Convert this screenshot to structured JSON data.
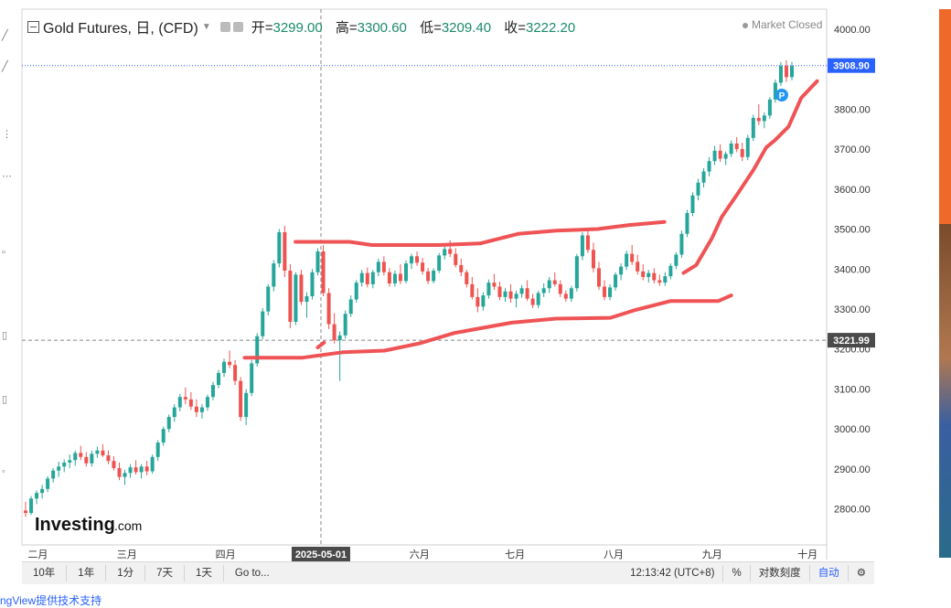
{
  "header": {
    "title": "Gold Futures, 日, (CFD)",
    "ohlc": [
      {
        "label": "开=",
        "value": "3299.00"
      },
      {
        "label": "高=",
        "value": "3300.60"
      },
      {
        "label": "低=",
        "value": "3209.40"
      },
      {
        "label": "收=",
        "value": "3222.20"
      }
    ],
    "status": "Market Closed"
  },
  "watermark": {
    "brand": "Investing",
    "suffix": ".com"
  },
  "price_marker_last": "3908.90",
  "price_marker_cursor": "3221.99",
  "cursor_date_label": "2025-05-01",
  "pin_label": "P",
  "chart_data": {
    "type": "candlestick",
    "y_range": [
      2710,
      4050
    ],
    "y_ticks": [
      "4000.00",
      "3900.00",
      "3800.00",
      "3700.00",
      "3600.00",
      "3500.00",
      "3400.00",
      "3300.00",
      "3200.00",
      "3100.00",
      "3000.00",
      "2900.00",
      "2800.00"
    ],
    "x_labels": [
      "二月",
      "三月",
      "四月",
      "2025-05-01",
      "六月",
      "七月",
      "八月",
      "九月",
      "十月"
    ],
    "candles": [
      [
        2796,
        2818,
        2780,
        2790
      ],
      [
        2790,
        2832,
        2785,
        2826
      ],
      [
        2826,
        2846,
        2812,
        2840
      ],
      [
        2840,
        2860,
        2826,
        2850
      ],
      [
        2850,
        2882,
        2842,
        2876
      ],
      [
        2876,
        2902,
        2866,
        2896
      ],
      [
        2896,
        2918,
        2880,
        2906
      ],
      [
        2906,
        2924,
        2892,
        2916
      ],
      [
        2916,
        2936,
        2902,
        2922
      ],
      [
        2922,
        2946,
        2908,
        2940
      ],
      [
        2940,
        2958,
        2922,
        2930
      ],
      [
        2930,
        2942,
        2906,
        2914
      ],
      [
        2914,
        2946,
        2906,
        2938
      ],
      [
        2938,
        2956,
        2928,
        2946
      ],
      [
        2946,
        2962,
        2930,
        2934
      ],
      [
        2934,
        2946,
        2912,
        2920
      ],
      [
        2920,
        2932,
        2896,
        2902
      ],
      [
        2902,
        2916,
        2872,
        2880
      ],
      [
        2880,
        2898,
        2860,
        2890
      ],
      [
        2890,
        2912,
        2878,
        2904
      ],
      [
        2904,
        2922,
        2886,
        2892
      ],
      [
        2892,
        2912,
        2876,
        2906
      ],
      [
        2906,
        2920,
        2884,
        2894
      ],
      [
        2894,
        2936,
        2888,
        2930
      ],
      [
        2930,
        2972,
        2920,
        2966
      ],
      [
        2966,
        3006,
        2958,
        3000
      ],
      [
        3000,
        3036,
        2992,
        3030
      ],
      [
        3030,
        3062,
        3018,
        3054
      ],
      [
        3054,
        3088,
        3044,
        3080
      ],
      [
        3080,
        3104,
        3062,
        3074
      ],
      [
        3074,
        3092,
        3048,
        3056
      ],
      [
        3056,
        3074,
        3030,
        3042
      ],
      [
        3042,
        3062,
        3026,
        3054
      ],
      [
        3054,
        3086,
        3046,
        3080
      ],
      [
        3080,
        3118,
        3072,
        3110
      ],
      [
        3110,
        3148,
        3102,
        3140
      ],
      [
        3140,
        3176,
        3130,
        3168
      ],
      [
        3168,
        3196,
        3152,
        3160
      ],
      [
        3160,
        3172,
        3110,
        3120
      ],
      [
        3120,
        3130,
        3020,
        3030
      ],
      [
        3030,
        3100,
        3010,
        3090
      ],
      [
        3090,
        3172,
        3082,
        3164
      ],
      [
        3164,
        3240,
        3156,
        3232
      ],
      [
        3232,
        3302,
        3224,
        3294
      ],
      [
        3294,
        3362,
        3284,
        3356
      ],
      [
        3356,
        3422,
        3344,
        3414
      ],
      [
        3414,
        3500,
        3404,
        3492
      ],
      [
        3492,
        3508,
        3380,
        3396
      ],
      [
        3396,
        3412,
        3252,
        3268
      ],
      [
        3268,
        3392,
        3260,
        3386
      ],
      [
        3386,
        3398,
        3310,
        3318
      ],
      [
        3318,
        3342,
        3278,
        3332
      ],
      [
        3332,
        3400,
        3324,
        3392
      ],
      [
        3392,
        3452,
        3384,
        3444
      ],
      [
        3444,
        3460,
        3332,
        3340
      ],
      [
        3340,
        3352,
        3250,
        3262
      ],
      [
        3262,
        3290,
        3214,
        3222
      ],
      [
        3222,
        3244,
        3120,
        3234
      ],
      [
        3234,
        3296,
        3226,
        3288
      ],
      [
        3288,
        3334,
        3280,
        3324
      ],
      [
        3324,
        3372,
        3316,
        3366
      ],
      [
        3366,
        3398,
        3356,
        3390
      ],
      [
        3390,
        3404,
        3354,
        3362
      ],
      [
        3362,
        3398,
        3352,
        3392
      ],
      [
        3392,
        3426,
        3382,
        3418
      ],
      [
        3418,
        3432,
        3384,
        3392
      ],
      [
        3392,
        3402,
        3356,
        3364
      ],
      [
        3364,
        3396,
        3356,
        3388
      ],
      [
        3388,
        3412,
        3362,
        3370
      ],
      [
        3370,
        3422,
        3364,
        3414
      ],
      [
        3414,
        3438,
        3400,
        3432
      ],
      [
        3432,
        3444,
        3408,
        3416
      ],
      [
        3416,
        3428,
        3386,
        3394
      ],
      [
        3394,
        3402,
        3362,
        3370
      ],
      [
        3370,
        3402,
        3364,
        3396
      ],
      [
        3396,
        3440,
        3390,
        3434
      ],
      [
        3434,
        3458,
        3424,
        3450
      ],
      [
        3450,
        3472,
        3430,
        3438
      ],
      [
        3438,
        3452,
        3404,
        3410
      ],
      [
        3410,
        3426,
        3382,
        3392
      ],
      [
        3392,
        3398,
        3354,
        3362
      ],
      [
        3362,
        3380,
        3324,
        3330
      ],
      [
        3330,
        3352,
        3292,
        3306
      ],
      [
        3306,
        3342,
        3296,
        3334
      ],
      [
        3334,
        3374,
        3326,
        3366
      ],
      [
        3366,
        3388,
        3348,
        3356
      ],
      [
        3356,
        3368,
        3322,
        3330
      ],
      [
        3330,
        3352,
        3318,
        3344
      ],
      [
        3344,
        3362,
        3316,
        3326
      ],
      [
        3326,
        3346,
        3304,
        3338
      ],
      [
        3338,
        3360,
        3328,
        3352
      ],
      [
        3352,
        3372,
        3320,
        3326
      ],
      [
        3326,
        3338,
        3302,
        3310
      ],
      [
        3310,
        3346,
        3302,
        3340
      ],
      [
        3340,
        3364,
        3330,
        3352
      ],
      [
        3352,
        3380,
        3340,
        3372
      ],
      [
        3372,
        3392,
        3356,
        3362
      ],
      [
        3362,
        3372,
        3330,
        3338
      ],
      [
        3338,
        3346,
        3318,
        3326
      ],
      [
        3326,
        3358,
        3318,
        3352
      ],
      [
        3352,
        3438,
        3344,
        3432
      ],
      [
        3432,
        3492,
        3422,
        3484
      ],
      [
        3484,
        3502,
        3440,
        3448
      ],
      [
        3448,
        3466,
        3392,
        3402
      ],
      [
        3402,
        3418,
        3348,
        3356
      ],
      [
        3356,
        3372,
        3322,
        3330
      ],
      [
        3330,
        3362,
        3322,
        3354
      ],
      [
        3354,
        3392,
        3346,
        3386
      ],
      [
        3386,
        3414,
        3372,
        3406
      ],
      [
        3406,
        3446,
        3398,
        3438
      ],
      [
        3438,
        3460,
        3410,
        3418
      ],
      [
        3418,
        3436,
        3386,
        3394
      ],
      [
        3394,
        3412,
        3372,
        3380
      ],
      [
        3380,
        3398,
        3366,
        3390
      ],
      [
        3390,
        3402,
        3364,
        3372
      ],
      [
        3372,
        3386,
        3358,
        3366
      ],
      [
        3366,
        3392,
        3358,
        3382
      ],
      [
        3382,
        3414,
        3374,
        3408
      ],
      [
        3408,
        3442,
        3400,
        3436
      ],
      [
        3436,
        3496,
        3428,
        3488
      ],
      [
        3488,
        3548,
        3480,
        3540
      ],
      [
        3540,
        3592,
        3532,
        3584
      ],
      [
        3584,
        3626,
        3572,
        3616
      ],
      [
        3616,
        3652,
        3604,
        3644
      ],
      [
        3644,
        3680,
        3632,
        3670
      ],
      [
        3670,
        3708,
        3660,
        3696
      ],
      [
        3696,
        3712,
        3668,
        3676
      ],
      [
        3676,
        3694,
        3660,
        3688
      ],
      [
        3688,
        3722,
        3680,
        3714
      ],
      [
        3714,
        3730,
        3692,
        3700
      ],
      [
        3700,
        3716,
        3670,
        3680
      ],
      [
        3680,
        3736,
        3672,
        3728
      ],
      [
        3728,
        3786,
        3720,
        3778
      ],
      [
        3778,
        3812,
        3760,
        3770
      ],
      [
        3770,
        3792,
        3752,
        3784
      ],
      [
        3784,
        3830,
        3776,
        3824
      ],
      [
        3824,
        3874,
        3816,
        3866
      ],
      [
        3866,
        3918,
        3858,
        3908
      ],
      [
        3908,
        3922,
        3868,
        3880
      ],
      [
        3880,
        3918,
        3872,
        3908
      ]
    ],
    "annotation_lines": [
      {
        "name": "upper-channel",
        "points": [
          [
            "2025-04-23",
            3468
          ],
          [
            "2025-05-10",
            3468
          ],
          [
            "2025-05-17",
            3460
          ],
          [
            "2025-06-07",
            3460
          ],
          [
            "2025-06-20",
            3464
          ],
          [
            "2025-07-02",
            3488
          ],
          [
            "2025-07-14",
            3496
          ],
          [
            "2025-07-27",
            3500
          ],
          [
            "2025-08-06",
            3510
          ],
          [
            "2025-08-17",
            3518
          ]
        ]
      },
      {
        "name": "lower-channel",
        "points": [
          [
            "2025-04-07",
            3178
          ],
          [
            "2025-04-25",
            3178
          ],
          [
            "2025-05-08",
            3192
          ],
          [
            "2025-05-21",
            3196
          ],
          [
            "2025-06-01",
            3214
          ],
          [
            "2025-06-12",
            3240
          ],
          [
            "2025-06-30",
            3266
          ],
          [
            "2025-07-14",
            3276
          ],
          [
            "2025-07-31",
            3278
          ],
          [
            "2025-08-08",
            3298
          ],
          [
            "2025-08-19",
            3320
          ],
          [
            "2025-09-03",
            3320
          ],
          [
            "2025-09-07",
            3334
          ]
        ]
      },
      {
        "name": "cursor-tick",
        "points": [
          [
            "2025-04-30",
            3204
          ],
          [
            "2025-05-02",
            3216
          ]
        ]
      },
      {
        "name": "breakout-trend",
        "points": [
          [
            "2025-08-23",
            3390
          ],
          [
            "2025-08-27",
            3410
          ],
          [
            "2025-09-01",
            3478
          ],
          [
            "2025-09-04",
            3530
          ],
          [
            "2025-09-09",
            3588
          ],
          [
            "2025-09-14",
            3648
          ],
          [
            "2025-09-18",
            3704
          ],
          [
            "2025-09-21",
            3724
          ],
          [
            "2025-09-25",
            3756
          ],
          [
            "2025-09-29",
            3828
          ],
          [
            "2025-10-04",
            3870
          ]
        ]
      }
    ]
  },
  "toolbar": {
    "ranges": [
      "10年",
      "1年",
      "1分",
      "7天",
      "1天",
      "Go to..."
    ],
    "time": "12:13:42 (UTC+8)",
    "percent": "%",
    "log": "对数刻度",
    "auto": "自动",
    "gear": "gear-icon"
  },
  "footer": {
    "text": "ngView提供技术支持"
  },
  "colors": {
    "up": "#26a69a",
    "down": "#ef5350",
    "annotation": "#ef5355",
    "accent": "#2962ff"
  }
}
